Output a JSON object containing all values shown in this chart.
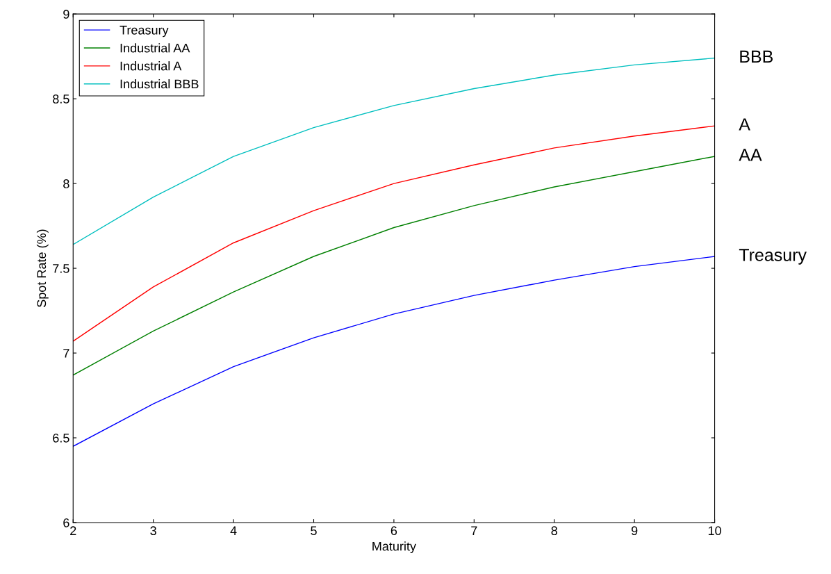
{
  "chart_data": {
    "type": "line",
    "xlabel": "Maturity",
    "ylabel": "Spot Rate (%)",
    "x": [
      2,
      3,
      4,
      5,
      6,
      7,
      8,
      9,
      10
    ],
    "series": [
      {
        "name": "Treasury",
        "color": "#0000ff",
        "values": [
          6.45,
          6.7,
          6.92,
          7.09,
          7.23,
          7.34,
          7.43,
          7.51,
          7.57
        ]
      },
      {
        "name": "Industrial AA",
        "color": "#008000",
        "values": [
          6.87,
          7.13,
          7.36,
          7.57,
          7.74,
          7.87,
          7.98,
          8.07,
          8.16
        ]
      },
      {
        "name": "Industrial A",
        "color": "#ff0000",
        "values": [
          7.07,
          7.39,
          7.65,
          7.84,
          8.0,
          8.11,
          8.21,
          8.28,
          8.34
        ]
      },
      {
        "name": "Industrial BBB",
        "color": "#00bfbf",
        "values": [
          7.64,
          7.92,
          8.16,
          8.33,
          8.46,
          8.56,
          8.64,
          8.7,
          8.74
        ]
      }
    ],
    "annotations": [
      "BBB",
      "A",
      "AA",
      "Treasury"
    ],
    "xlim": [
      2,
      10
    ],
    "xticks": [
      2,
      3,
      4,
      5,
      6,
      7,
      8,
      9,
      10
    ],
    "ylim": [
      6,
      9
    ],
    "yticks": [
      6,
      6.5,
      7,
      7.5,
      8,
      8.5,
      9
    ],
    "grid": false,
    "legend": "top left",
    "marker": "none",
    "line_style": "solid"
  }
}
